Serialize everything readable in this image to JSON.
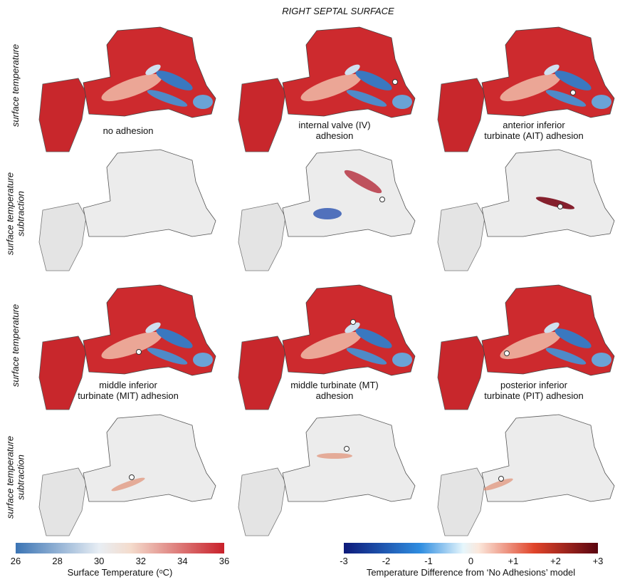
{
  "title": "RIGHT SEPTAL SURFACE",
  "row_labels": [
    [
      "surface temperature"
    ],
    [
      "surface temperature",
      "subtraction"
    ],
    [
      "surface temperature"
    ],
    [
      "surface temperature",
      "subtraction"
    ]
  ],
  "captions": [
    [
      "no adhesion"
    ],
    [
      "internal valve (IV)",
      "adhesion"
    ],
    [
      "anterior inferior",
      "turbinate (AIT) adhesion"
    ],
    [
      "middle inferior",
      "turbinate (MIT) adhesion"
    ],
    [
      "middle turbinate (MT)",
      "adhesion"
    ],
    [
      "posterior inferior",
      "turbinate (PIT) adhesion"
    ]
  ],
  "colorbars": [
    {
      "title": "Surface Temperature (ᵒC)",
      "ticks": [
        "26",
        "28",
        "30",
        "32",
        "34",
        "36"
      ]
    },
    {
      "title": "Temperature Difference from ‘No Adhesions’ model",
      "ticks": [
        "-3",
        "-2",
        "-1",
        "0",
        "+1",
        "+2",
        "+3"
      ]
    }
  ]
}
